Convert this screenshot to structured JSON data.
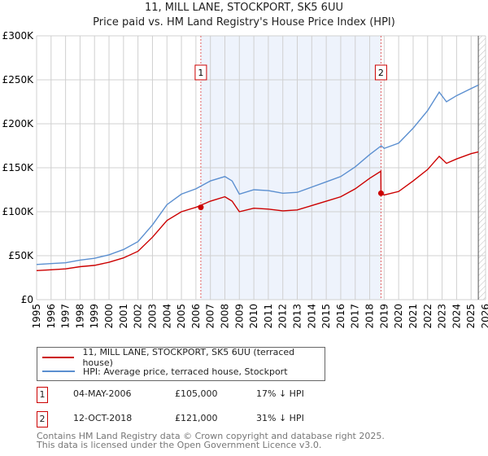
{
  "chart_data": {
    "type": "line",
    "title": "11, MILL LANE, STOCKPORT, SK5 6UU",
    "subtitle": "Price paid vs. HM Land Registry's House Price Index (HPI)",
    "xlim": [
      1995,
      2026
    ],
    "ylim": [
      0,
      300000
    ],
    "yticks": [
      {
        "v": 0,
        "label": "£0"
      },
      {
        "v": 50000,
        "label": "£50K"
      },
      {
        "v": 100000,
        "label": "£100K"
      },
      {
        "v": 150000,
        "label": "£150K"
      },
      {
        "v": 200000,
        "label": "£200K"
      },
      {
        "v": 250000,
        "label": "£250K"
      },
      {
        "v": 300000,
        "label": "£300K"
      }
    ],
    "xticks": [
      "1995",
      "1996",
      "1997",
      "1998",
      "1999",
      "2000",
      "2001",
      "2002",
      "2003",
      "2004",
      "2005",
      "2006",
      "2007",
      "2008",
      "2009",
      "2010",
      "2011",
      "2012",
      "2013",
      "2014",
      "2015",
      "2016",
      "2017",
      "2018",
      "2019",
      "2020",
      "2021",
      "2022",
      "2023",
      "2024",
      "2025",
      "2026"
    ],
    "shaded_range": [
      2006.34,
      2018.78
    ],
    "forecast_from": 2025.5,
    "series": [
      {
        "name": "11, MILL LANE, STOCKPORT, SK5 6UU (terraced house)",
        "color": "#cc0000",
        "x": [
          1995,
          1996,
          1997,
          1998,
          1999,
          2000,
          2001,
          2002,
          2003,
          2004,
          2005,
          2006,
          2007,
          2008,
          2008.5,
          2009,
          2010,
          2011,
          2012,
          2013,
          2014,
          2015,
          2016,
          2017,
          2018,
          2018.77,
          2018.78,
          2019,
          2020,
          2021,
          2022,
          2022.8,
          2023.3,
          2024,
          2025,
          2025.5
        ],
        "y": [
          33000,
          34000,
          35000,
          37500,
          39000,
          42500,
          47500,
          55000,
          71000,
          90000,
          100000,
          105000,
          112000,
          117000,
          112000,
          100000,
          104000,
          103000,
          101000,
          102000,
          107000,
          112000,
          117000,
          126000,
          138000,
          146000,
          121000,
          119000,
          123000,
          135000,
          148000,
          163000,
          155000,
          160000,
          166000,
          168000
        ]
      },
      {
        "name": "HPI: Average price, terraced house, Stockport",
        "color": "#5b8fd0",
        "x": [
          1995,
          1996,
          1997,
          1998,
          1999,
          2000,
          2001,
          2002,
          2003,
          2004,
          2005,
          2006,
          2007,
          2008,
          2008.5,
          2009,
          2010,
          2011,
          2012,
          2013,
          2014,
          2015,
          2016,
          2017,
          2018,
          2018.8,
          2019,
          2020,
          2021,
          2022,
          2022.8,
          2023.3,
          2024,
          2025,
          2025.5
        ],
        "y": [
          40000,
          41000,
          42000,
          45000,
          47000,
          51000,
          57000,
          66000,
          85000,
          108000,
          120000,
          126000,
          135000,
          140000,
          135000,
          120000,
          125000,
          124000,
          121000,
          122000,
          128000,
          134000,
          140000,
          151000,
          165000,
          175000,
          172000,
          178000,
          195000,
          215000,
          236000,
          225000,
          232000,
          240000,
          244000
        ]
      }
    ],
    "sales": [
      {
        "id": "1",
        "x": 2006.34,
        "y": 105000
      },
      {
        "id": "2",
        "x": 2018.78,
        "y": 121000
      }
    ]
  },
  "table": [
    {
      "id": "1",
      "date": "04-MAY-2006",
      "price": "£105,000",
      "hpi": "17% ↓ HPI"
    },
    {
      "id": "2",
      "date": "12-OCT-2018",
      "price": "£121,000",
      "hpi": "31% ↓ HPI"
    }
  ],
  "footer": [
    "Contains HM Land Registry data © Crown copyright and database right 2025.",
    "This data is licensed under the Open Government Licence v3.0."
  ]
}
